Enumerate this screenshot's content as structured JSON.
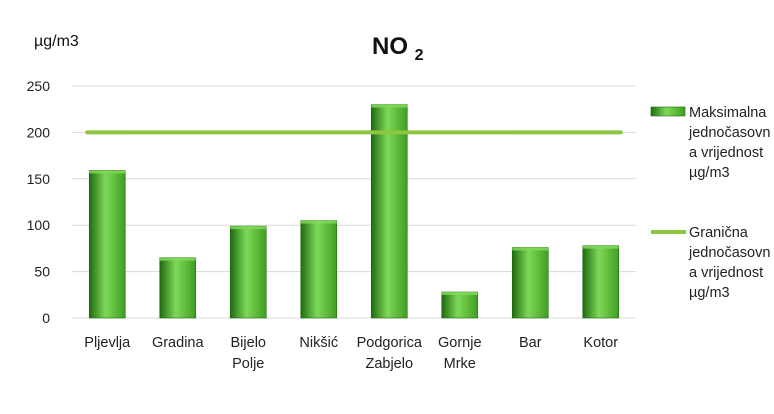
{
  "chart_data": {
    "type": "bar",
    "title_main": "NO",
    "title_sub": "2",
    "ylabel": "µg/m3",
    "xlabel": "",
    "ylim": [
      0,
      250
    ],
    "yticks": [
      "0",
      "50",
      "100",
      "150",
      "200",
      "250"
    ],
    "categories": [
      [
        "Pljevlja"
      ],
      [
        "Gradina"
      ],
      [
        "Bijelo",
        "Polje"
      ],
      [
        "Nikšić"
      ],
      [
        "Podgorica",
        "Zabjelo"
      ],
      [
        "Gornje",
        "Mrke"
      ],
      [
        "Bar"
      ],
      [
        "Kotor"
      ]
    ],
    "series": [
      {
        "type": "bar",
        "legend": [
          "Maksimalna",
          "jednočasovn",
          "a vrijednost",
          "µg/m3"
        ],
        "values": [
          159,
          65,
          99,
          105,
          230,
          28,
          76,
          78
        ]
      },
      {
        "type": "line",
        "legend": [
          "Granična",
          "jednočasovn",
          "a vrijednost",
          "µg/m3"
        ],
        "values": [
          200,
          200,
          200,
          200,
          200,
          200,
          200,
          200
        ]
      }
    ],
    "grid": true,
    "legend_position": "right",
    "colors": {
      "bar_light": "#7ed957",
      "bar_mid": "#3f9e22",
      "bar_dark": "#1f6a10",
      "limit_line": "#8dc63f",
      "grid": "#d9d9d9"
    }
  }
}
